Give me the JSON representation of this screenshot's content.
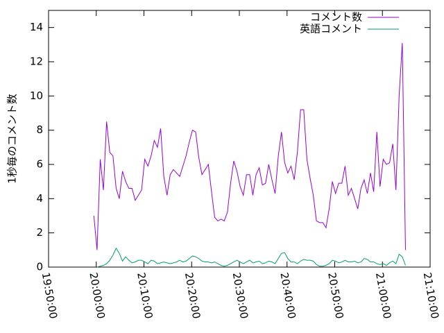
{
  "chart_data": {
    "type": "line",
    "ylabel": "1秒毎のコメント数",
    "x": [
      "19:59:30",
      "20:00:10",
      "20:00:50",
      "20:01:30",
      "20:02:10",
      "20:02:50",
      "20:03:30",
      "20:04:10",
      "20:04:50",
      "20:05:30",
      "20:06:10",
      "20:06:50",
      "20:07:30",
      "20:08:10",
      "20:08:50",
      "20:09:30",
      "20:10:10",
      "20:10:50",
      "20:11:30",
      "20:12:10",
      "20:12:50",
      "20:13:30",
      "20:14:10",
      "20:14:50",
      "20:15:30",
      "20:16:10",
      "20:16:50",
      "20:17:30",
      "20:18:10",
      "20:18:50",
      "20:19:30",
      "20:20:10",
      "20:20:50",
      "20:21:30",
      "20:22:10",
      "20:22:50",
      "20:23:30",
      "20:24:10",
      "20:24:50",
      "20:25:30",
      "20:26:10",
      "20:26:50",
      "20:27:30",
      "20:28:10",
      "20:28:50",
      "20:29:30",
      "20:30:10",
      "20:30:50",
      "20:31:30",
      "20:32:10",
      "20:32:50",
      "20:33:30",
      "20:34:10",
      "20:34:50",
      "20:35:30",
      "20:36:10",
      "20:36:50",
      "20:37:30",
      "20:38:10",
      "20:38:50",
      "20:39:30",
      "20:40:10",
      "20:40:50",
      "20:41:30",
      "20:42:10",
      "20:42:50",
      "20:43:30",
      "20:44:10",
      "20:44:50",
      "20:45:30",
      "20:46:10",
      "20:46:50",
      "20:47:30",
      "20:48:10",
      "20:48:50",
      "20:49:30",
      "20:50:10",
      "20:50:50",
      "20:51:30",
      "20:52:10",
      "20:52:50",
      "20:53:30",
      "20:54:10",
      "20:54:50",
      "20:55:30",
      "20:56:10",
      "20:56:50",
      "20:57:30",
      "20:58:10",
      "20:58:50",
      "20:59:30",
      "21:00:10",
      "21:00:50",
      "21:01:30",
      "21:02:10",
      "21:02:50",
      "21:03:30",
      "21:04:10",
      "21:04:50"
    ],
    "series": [
      {
        "name": "コメント数",
        "color": "#9400d3",
        "values": [
          3,
          1,
          6.3,
          4.5,
          8.5,
          6.7,
          6.5,
          4.6,
          4.0,
          5.6,
          5.0,
          4.6,
          4.6,
          3.9,
          4.2,
          4.5,
          6.3,
          5.9,
          6.5,
          7.4,
          7.0,
          8.1,
          5.3,
          4.2,
          5.4,
          5.7,
          5.5,
          5.3,
          5.9,
          6.5,
          7.3,
          8.0,
          7.9,
          6.4,
          5.4,
          5.7,
          6.0,
          4.4,
          2.9,
          2.7,
          2.8,
          2.7,
          3.2,
          4.9,
          6.2,
          5.6,
          4.7,
          4.2,
          5.4,
          5.4,
          4.2,
          5.4,
          5.8,
          4.8,
          4.9,
          6.0,
          5.1,
          4.3,
          6.5,
          7.9,
          6.1,
          5.5,
          5.9,
          5.1,
          6.7,
          9.2,
          9.2,
          6.3,
          5.2,
          4.2,
          2.7,
          2.6,
          2.6,
          2.3,
          3.4,
          5.0,
          4.3,
          4.9,
          4.9,
          5.9,
          4.2,
          4.6,
          4.0,
          3.4,
          4.6,
          5.1,
          4.3,
          5.5,
          4.4,
          7.9,
          4.7,
          6.3,
          6.0,
          6.1,
          7.2,
          4.5,
          10.0,
          13.1,
          1.0
        ]
      },
      {
        "name": "英語コメント",
        "color": "#009e73",
        "values": [
          null,
          0,
          0.05,
          0.1,
          0.2,
          0.4,
          0.7,
          1.1,
          0.8,
          0.35,
          0.6,
          0.4,
          0.25,
          0.3,
          0.4,
          0.4,
          0.3,
          0.2,
          0.4,
          0.35,
          0.2,
          0.25,
          0.3,
          0.25,
          0.2,
          0.25,
          0.3,
          0.4,
          0.3,
          0.35,
          0.5,
          0.65,
          0.6,
          0.5,
          0.35,
          0.3,
          0.3,
          0.25,
          0.3,
          0.2,
          0.1,
          0.05,
          0.1,
          0.2,
          0.3,
          0.4,
          0.3,
          0.2,
          0.3,
          0.4,
          0.25,
          0.3,
          0.35,
          0.2,
          0.25,
          0.35,
          0.3,
          0.2,
          0.5,
          0.8,
          0.85,
          0.5,
          0.3,
          0.3,
          0.2,
          0.35,
          0.45,
          0.4,
          0.4,
          0.35,
          0.15,
          0.05,
          0.05,
          0.1,
          0.2,
          0.4,
          0.35,
          0.25,
          0.3,
          0.4,
          0.3,
          0.3,
          0.35,
          0.25,
          0.3,
          0.5,
          0.45,
          0.3,
          0.3,
          0.2,
          0.15,
          0.2,
          0.1,
          0.25,
          0.35,
          0.2,
          0.75,
          0.6,
          0.1
        ]
      }
    ],
    "xlim": [
      "19:50:00",
      "21:10:00"
    ],
    "xticks": [
      "19:50:00",
      "20:00:00",
      "20:10:00",
      "20:20:00",
      "20:30:00",
      "20:40:00",
      "20:50:00",
      "21:00:00",
      "21:10:00"
    ],
    "ylim": [
      0,
      15
    ],
    "yticks": [
      0,
      2,
      4,
      6,
      8,
      10,
      12,
      14
    ],
    "legend": "top right"
  }
}
